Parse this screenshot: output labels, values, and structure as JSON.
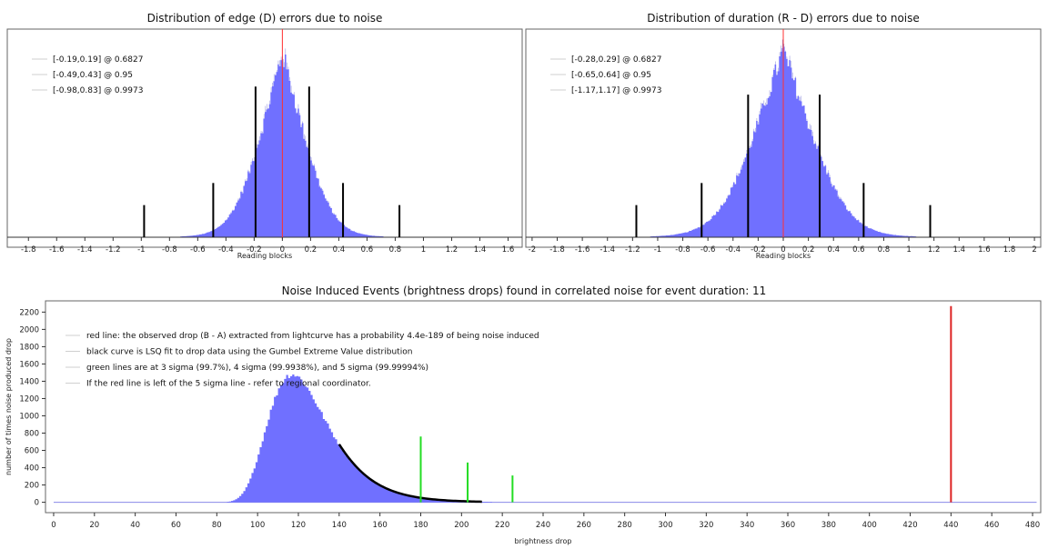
{
  "chart_data": [
    {
      "type": "histogram",
      "title": "Distribution of edge (D) errors due to noise",
      "xlabel": "Reading blocks",
      "xlim": [
        -1.95,
        1.7
      ],
      "x_ticks": [
        -1.8,
        -1.6,
        -1.4,
        -1.2,
        -1,
        -0.8,
        -0.6,
        -0.4,
        -0.2,
        0,
        0.2,
        0.4,
        0.6,
        0.8,
        1,
        1.2,
        1.4,
        1.6
      ],
      "center": 0,
      "sigma": 0.19,
      "peak_fraction": 0.92,
      "red_line_x": 0,
      "legend": [
        "[-0.19,0.19] @ 0.6827",
        "[-0.49,0.43] @ 0.95",
        "[-0.98,0.83] @ 0.9973"
      ],
      "black_lines": [
        {
          "x": -0.98,
          "height": 0.16
        },
        {
          "x": -0.49,
          "height": 0.27
        },
        {
          "x": -0.19,
          "height": 0.75
        },
        {
          "x": 0.19,
          "height": 0.75
        },
        {
          "x": 0.43,
          "height": 0.27
        },
        {
          "x": 0.83,
          "height": 0.16
        }
      ],
      "colors": {
        "bars": "#7070ff",
        "red_line": "#ff3030",
        "black_lines": "#000000"
      }
    },
    {
      "type": "histogram",
      "title": "Distribution of duration (R - D) errors due to noise",
      "xlabel": "Reading blocks",
      "xlim": [
        -2.05,
        2.05
      ],
      "x_ticks": [
        -2,
        -1.8,
        -1.6,
        -1.4,
        -1.2,
        -1,
        -0.8,
        -0.6,
        -0.4,
        -0.2,
        0,
        0.2,
        0.4,
        0.6,
        0.8,
        1,
        1.2,
        1.4,
        1.6,
        1.8,
        2
      ],
      "center": 0,
      "sigma": 0.28,
      "peak_fraction": 0.93,
      "red_line_x": 0,
      "legend": [
        "[-0.28,0.29] @ 0.6827",
        "[-0.65,0.64] @ 0.95",
        "[-1.17,1.17] @ 0.9973"
      ],
      "black_lines": [
        {
          "x": -1.17,
          "height": 0.16
        },
        {
          "x": -0.65,
          "height": 0.27
        },
        {
          "x": -0.28,
          "height": 0.71
        },
        {
          "x": 0.29,
          "height": 0.71
        },
        {
          "x": 0.64,
          "height": 0.27
        },
        {
          "x": 1.17,
          "height": 0.16
        }
      ],
      "colors": {
        "bars": "#7070ff",
        "red_line": "#ff3030",
        "black_lines": "#000000"
      }
    },
    {
      "type": "histogram",
      "title": "Noise Induced Events (brightness drops) found in correlated noise for event duration: 11",
      "xlabel": "brightness drop",
      "ylabel": "number of times noise produced drop",
      "xlim": [
        -4,
        484
      ],
      "ylim": [
        -120,
        2330
      ],
      "x_ticks": [
        0,
        20,
        40,
        60,
        80,
        100,
        120,
        140,
        160,
        180,
        200,
        220,
        240,
        260,
        280,
        300,
        320,
        340,
        360,
        380,
        400,
        420,
        440,
        460,
        480
      ],
      "y_ticks": [
        0,
        200,
        400,
        600,
        800,
        1000,
        1200,
        1400,
        1600,
        1800,
        2000,
        2200
      ],
      "gumbel_mode": 117,
      "gumbel_scale": 14.5,
      "peak_count": 1480,
      "gumbel_fit_range": [
        140,
        210
      ],
      "legend": [
        "red line: the observed drop (B - A) extracted from lightcurve has a probability 4.4e-189 of being noise induced",
        "black curve is LSQ fit to drop data using the Gumbel Extreme Value distribution",
        "green lines are at 3 sigma (99.7%), 4 sigma (99.9938%), and 5 sigma (99.99994%)",
        "If the red line is left of the 5 sigma line - refer to regional coordinator."
      ],
      "green_lines": [
        {
          "x": 180,
          "y": 760
        },
        {
          "x": 203,
          "y": 460
        },
        {
          "x": 225,
          "y": 310
        }
      ],
      "red_line": {
        "x": 440,
        "y": 2270
      },
      "colors": {
        "bars": "#7070ff",
        "fit": "#000000",
        "green": "#22dd22",
        "red": "#dd2222"
      }
    }
  ]
}
